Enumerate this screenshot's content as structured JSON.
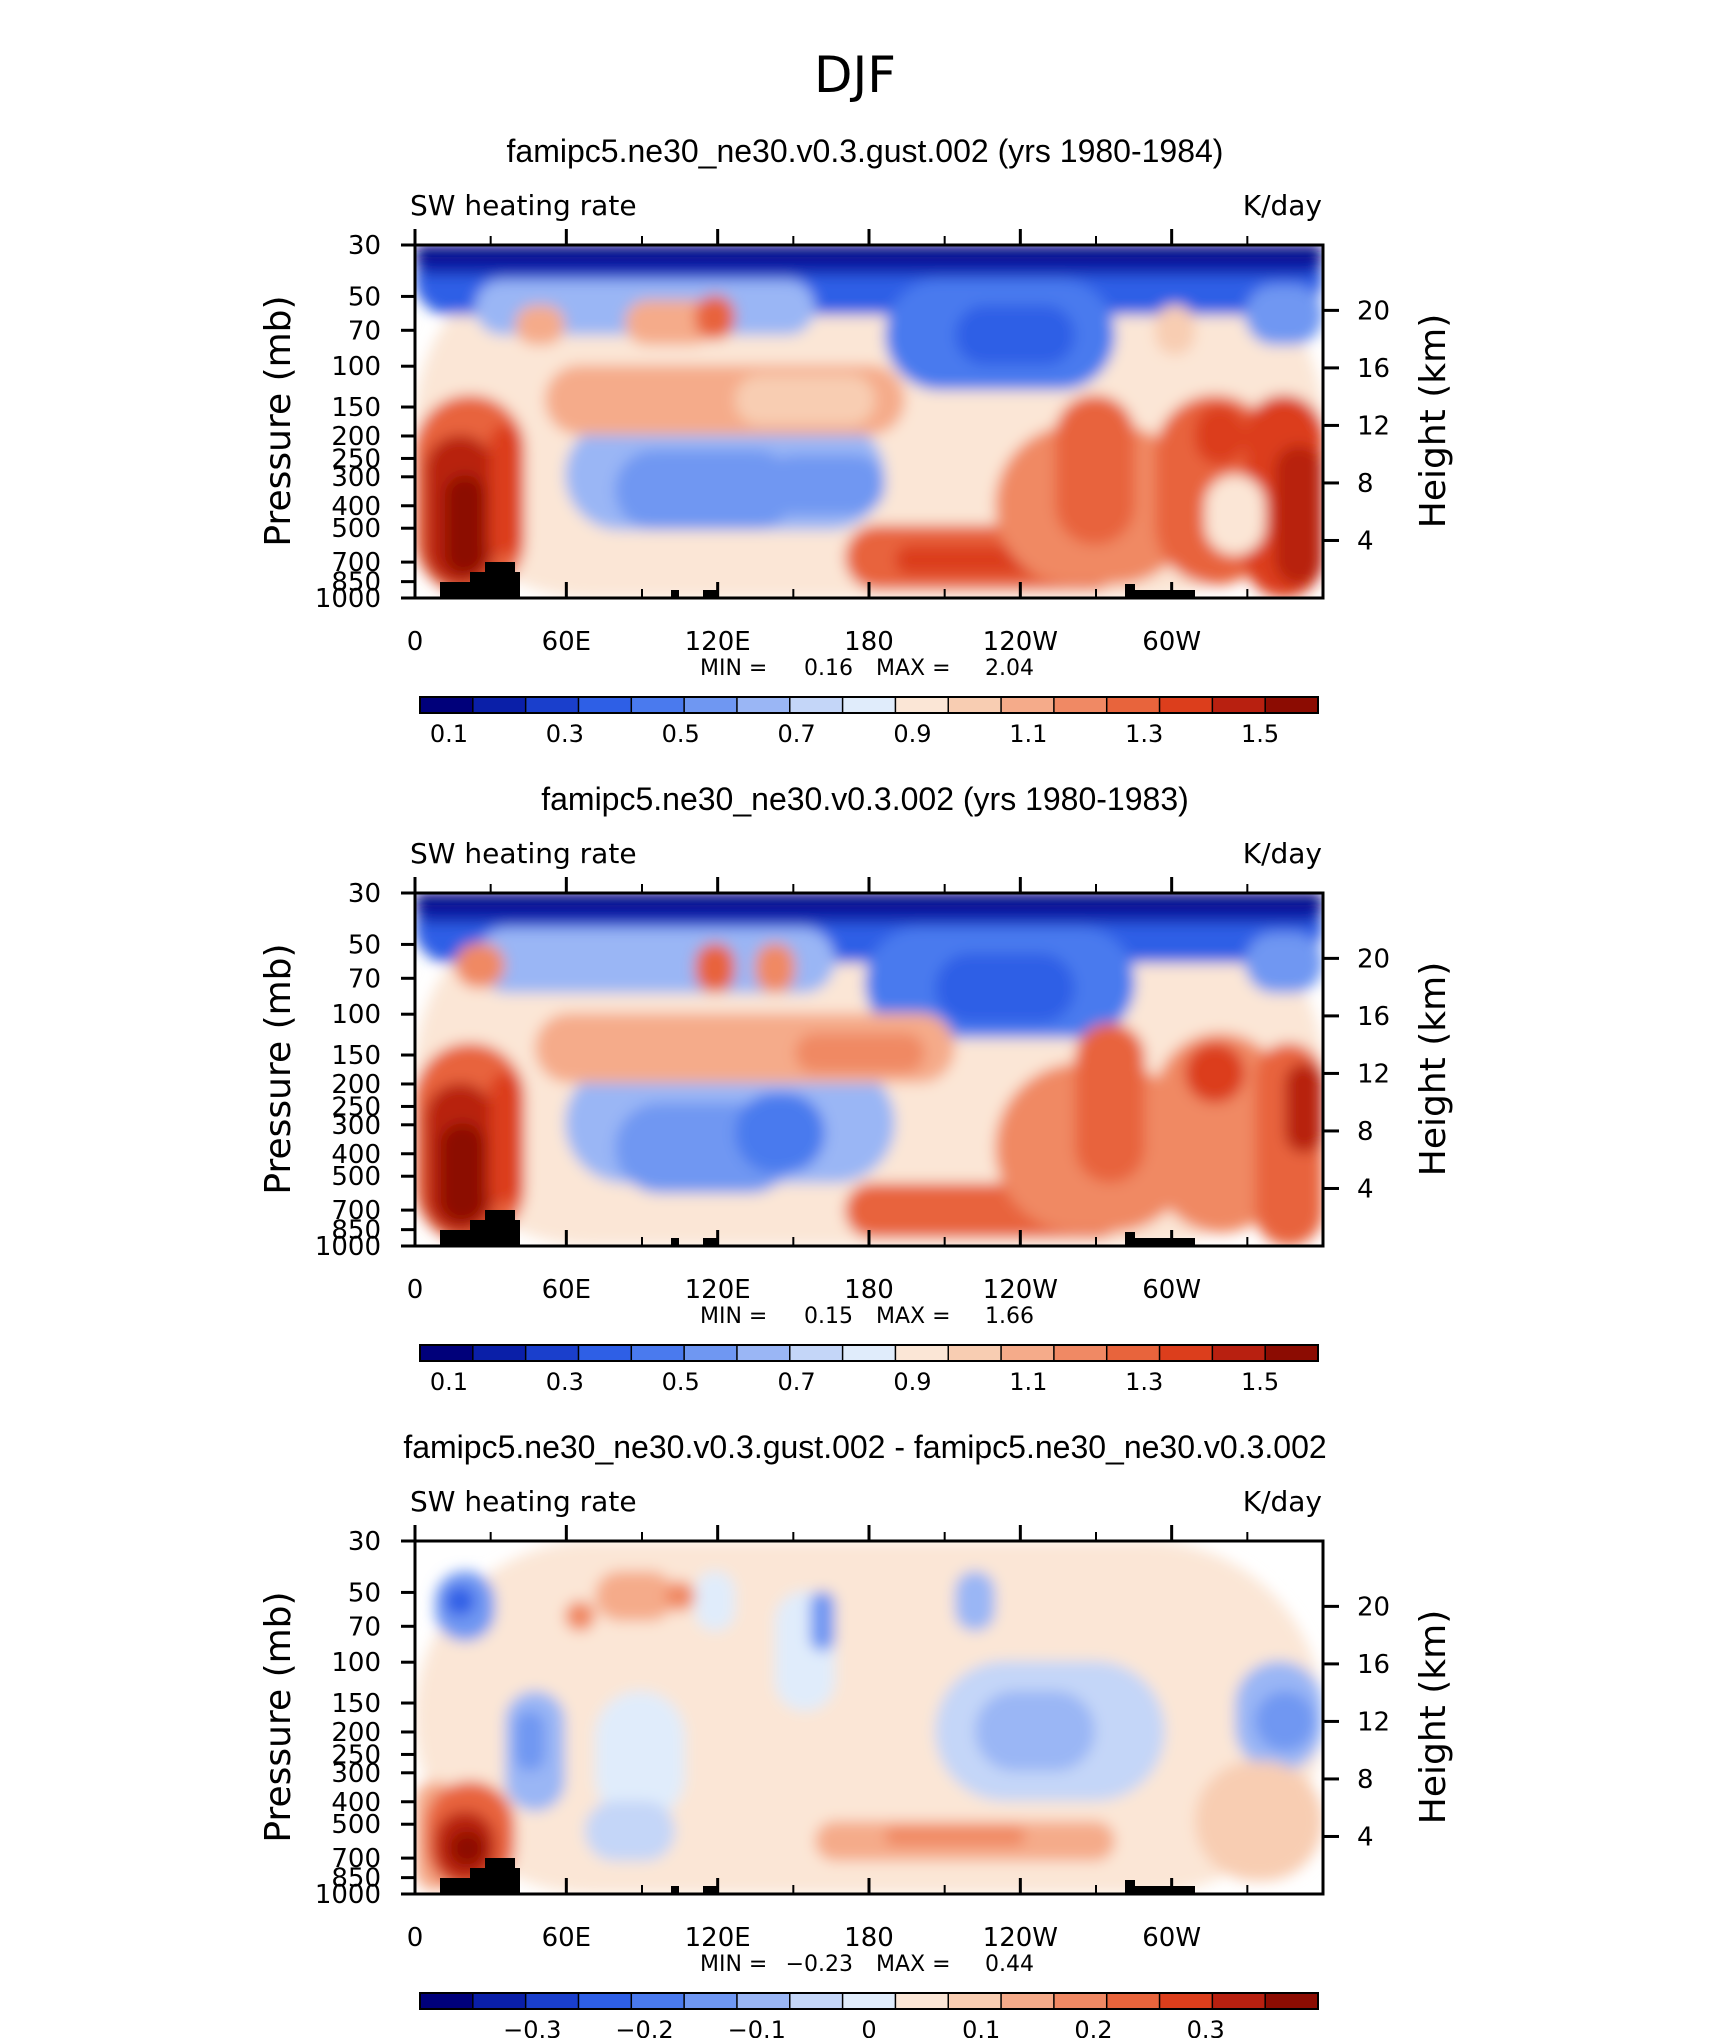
{
  "figure": {
    "title": "DJF"
  },
  "chart_data": [
    {
      "type": "heatmap",
      "title": "famipc5.ne30_ne30.v0.3.gust.002 (yrs 1980-1984)",
      "left_label": "SW heating rate",
      "right_label": "K/day",
      "ylabel": "Pressure (mb)",
      "ylabel_right": "Height (km)",
      "x_ticks": [
        "0",
        "60E",
        "120E",
        "180",
        "120W",
        "60W"
      ],
      "y_ticks": [
        "30",
        "50",
        "70",
        "100",
        "150",
        "200",
        "250",
        "300",
        "400",
        "500",
        "700",
        "850",
        "1000"
      ],
      "y_ticks_right": [
        "20",
        "16",
        "12",
        "8",
        "4"
      ],
      "min_label": "MIN =",
      "min_value": "0.16",
      "max_label": "MAX =",
      "max_value": "2.04",
      "colorbar_min": 0.05,
      "colorbar_max": 1.6,
      "colorbar_labels": [
        "0.1",
        "0.3",
        "0.5",
        "0.7",
        "0.9",
        "1.1",
        "1.3",
        "1.5"
      ]
    },
    {
      "type": "heatmap",
      "title": "famipc5.ne30_ne30.v0.3.002 (yrs 1980-1983)",
      "left_label": "SW heating rate",
      "right_label": "K/day",
      "ylabel": "Pressure (mb)",
      "ylabel_right": "Height (km)",
      "x_ticks": [
        "0",
        "60E",
        "120E",
        "180",
        "120W",
        "60W"
      ],
      "y_ticks": [
        "30",
        "50",
        "70",
        "100",
        "150",
        "200",
        "250",
        "300",
        "400",
        "500",
        "700",
        "850",
        "1000"
      ],
      "y_ticks_right": [
        "20",
        "16",
        "12",
        "8",
        "4"
      ],
      "min_label": "MIN =",
      "min_value": "0.15",
      "max_label": "MAX =",
      "max_value": "1.66",
      "colorbar_min": 0.05,
      "colorbar_max": 1.6,
      "colorbar_labels": [
        "0.1",
        "0.3",
        "0.5",
        "0.7",
        "0.9",
        "1.1",
        "1.3",
        "1.5"
      ]
    },
    {
      "type": "heatmap",
      "title": "famipc5.ne30_ne30.v0.3.gust.002 - famipc5.ne30_ne30.v0.3.002",
      "left_label": "SW heating rate",
      "right_label": "K/day",
      "ylabel": "Pressure (mb)",
      "ylabel_right": "Height (km)",
      "x_ticks": [
        "0",
        "60E",
        "120E",
        "180",
        "120W",
        "60W"
      ],
      "y_ticks": [
        "30",
        "50",
        "70",
        "100",
        "150",
        "200",
        "250",
        "300",
        "400",
        "500",
        "700",
        "850",
        "1000"
      ],
      "y_ticks_right": [
        "20",
        "16",
        "12",
        "8",
        "4"
      ],
      "min_label": "MIN =",
      "min_value": "−0.23",
      "max_label": "MAX =",
      "max_value": "0.44",
      "colorbar_min": -0.4,
      "colorbar_max": 0.4,
      "colorbar_labels": [
        "−0.3",
        "−0.2",
        "−0.1",
        "0",
        "0.1",
        "0.2",
        "0.3"
      ]
    }
  ],
  "colors": [
    "#00007a",
    "#0a1fa8",
    "#1a3fcc",
    "#2e5fe6",
    "#4a7aee",
    "#6f97f2",
    "#9ab6f5",
    "#c4d6f8",
    "#e0ecfb",
    "#fbe6d6",
    "#f8cdb2",
    "#f5ab8a",
    "#f08964",
    "#e8643c",
    "#dc3e1c",
    "#b82010",
    "#8c0c02"
  ]
}
